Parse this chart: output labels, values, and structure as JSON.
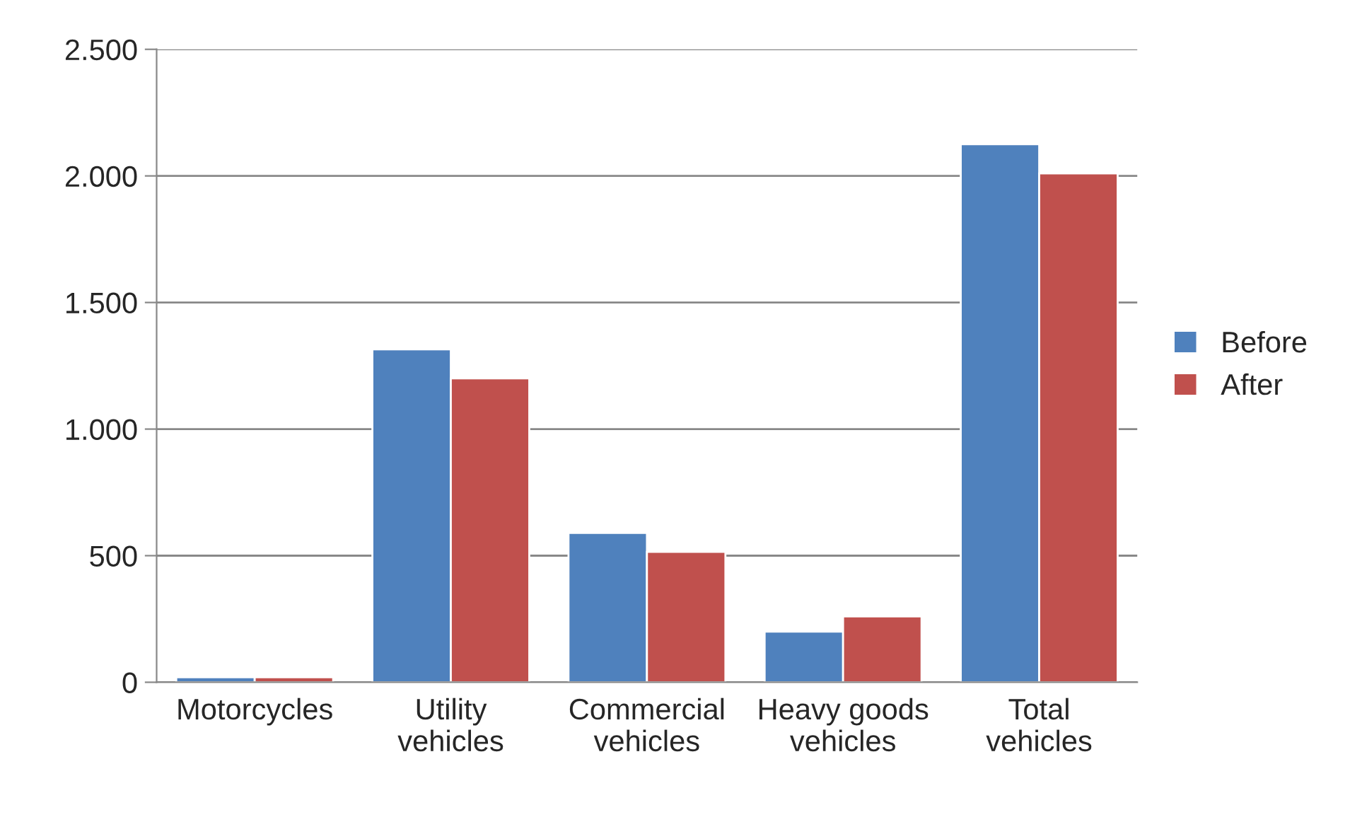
{
  "chart_data": {
    "type": "bar",
    "categories": [
      "Motorcycles",
      "Utility\nvehicles",
      "Commercial\nvehicles",
      "Heavy goods\nvehicles",
      "Total\nvehicles"
    ],
    "series": [
      {
        "name": "Before",
        "color": "#4f81bd",
        "values": [
          20,
          1315,
          590,
          200,
          2125
        ]
      },
      {
        "name": "After",
        "color": "#c0504d",
        "values": [
          20,
          1200,
          515,
          260,
          2010
        ]
      }
    ],
    "ylim": [
      0,
      2500
    ],
    "yticks": [
      0,
      500,
      {
        "value": 1000,
        "label": "1.000"
      },
      {
        "value": 1500,
        "label": "1.500"
      },
      {
        "value": 2000,
        "label": "2.000"
      },
      {
        "value": 2500,
        "label": "2.500"
      }
    ],
    "grid": "y",
    "legend": "right"
  }
}
